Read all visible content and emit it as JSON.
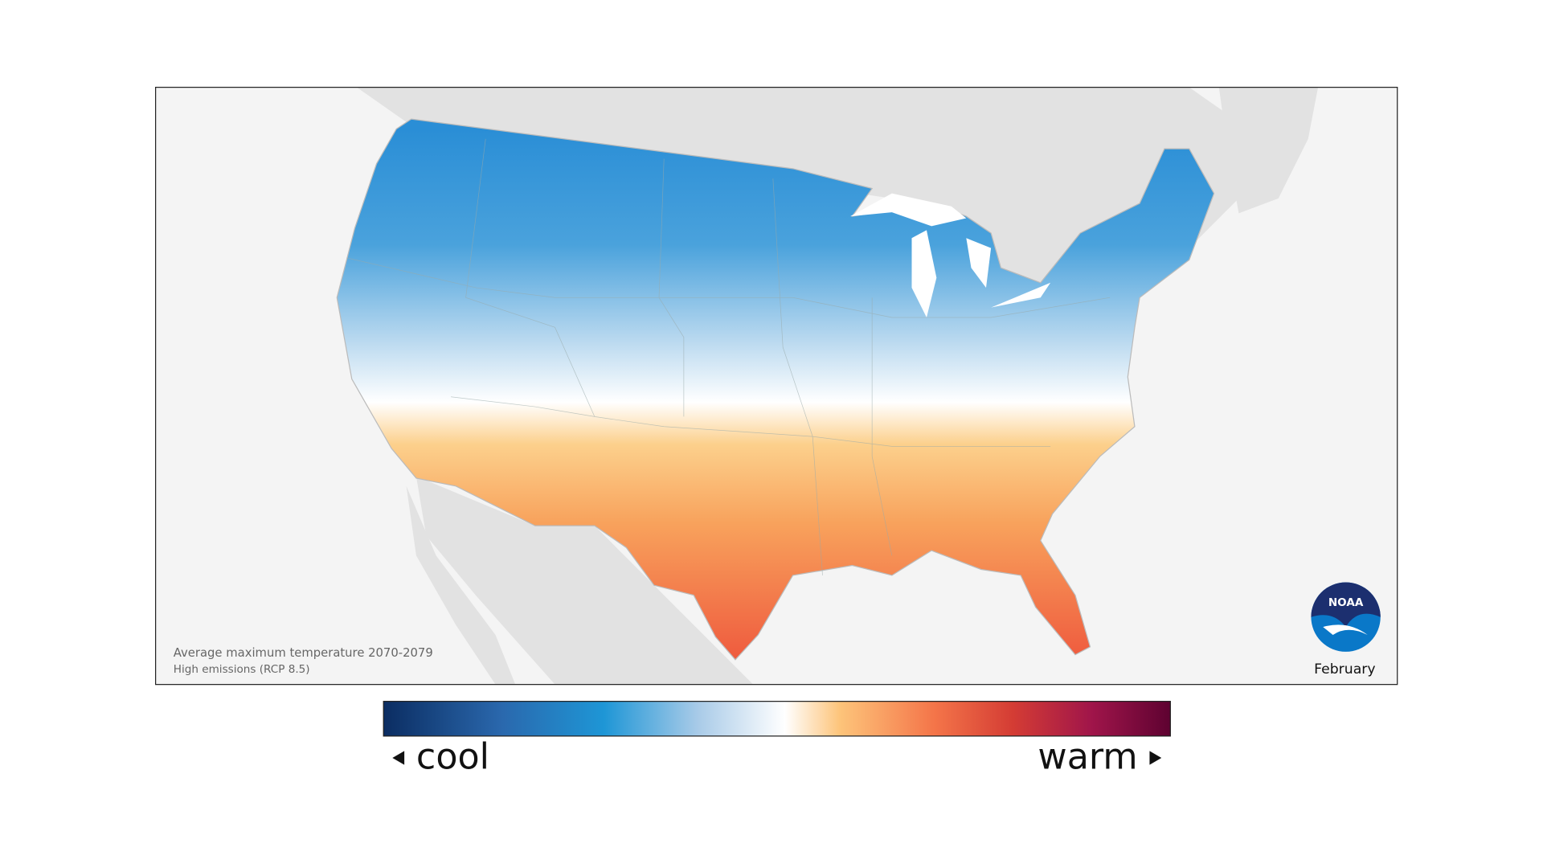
{
  "map": {
    "caption": {
      "title": "Average maximum temperature 2070-2079",
      "subtitle": "High emissions (RCP 8.5)"
    },
    "logo": "NOAA",
    "month": "February"
  },
  "legend": {
    "low_label": "cool",
    "high_label": "warm"
  }
}
